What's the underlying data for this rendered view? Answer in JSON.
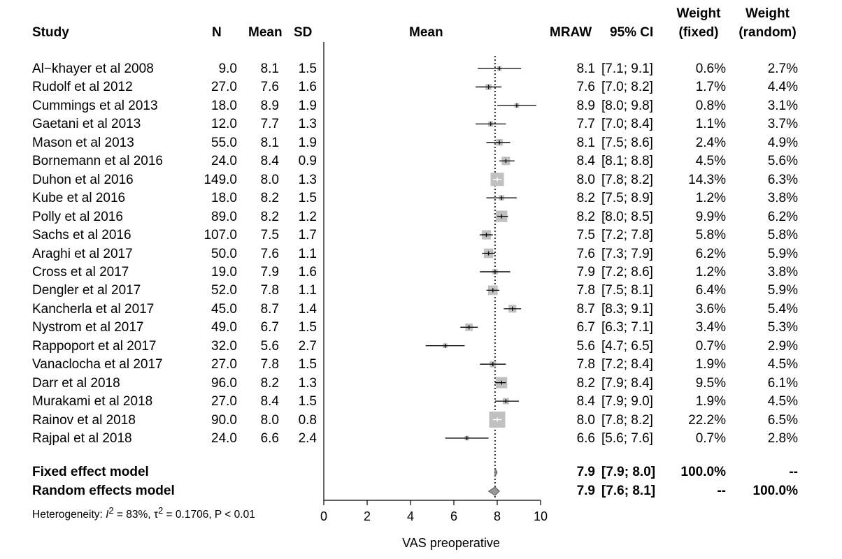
{
  "header": {
    "study": "Study",
    "n": "N",
    "mean": "Mean",
    "sd": "SD",
    "plot_mean": "Mean",
    "mraw": "MRAW",
    "ci": "95% CI",
    "wfixed_1": "Weight",
    "wfixed_2": "(fixed)",
    "wrandom_1": "Weight",
    "wrandom_2": "(random)"
  },
  "studies": [
    {
      "study": "Al−khayer et al 2008",
      "n": "9.0",
      "mean": "8.1",
      "sd": "1.5",
      "mraw": "8.1",
      "ci": "[7.1; 9.1]",
      "wfixed": "0.6%",
      "wrandom": "2.7%"
    },
    {
      "study": "Rudolf et al 2012",
      "n": "27.0",
      "mean": "7.6",
      "sd": "1.6",
      "mraw": "7.6",
      "ci": "[7.0; 8.2]",
      "wfixed": "1.7%",
      "wrandom": "4.4%"
    },
    {
      "study": "Cummings et al 2013",
      "n": "18.0",
      "mean": "8.9",
      "sd": "1.9",
      "mraw": "8.9",
      "ci": "[8.0; 9.8]",
      "wfixed": "0.8%",
      "wrandom": "3.1%"
    },
    {
      "study": "Gaetani et al 2013",
      "n": "12.0",
      "mean": "7.7",
      "sd": "1.3",
      "mraw": "7.7",
      "ci": "[7.0; 8.4]",
      "wfixed": "1.1%",
      "wrandom": "3.7%"
    },
    {
      "study": "Mason et al 2013",
      "n": "55.0",
      "mean": "8.1",
      "sd": "1.9",
      "mraw": "8.1",
      "ci": "[7.5; 8.6]",
      "wfixed": "2.4%",
      "wrandom": "4.9%"
    },
    {
      "study": "Bornemann et al 2016",
      "n": "24.0",
      "mean": "8.4",
      "sd": "0.9",
      "mraw": "8.4",
      "ci": "[8.1; 8.8]",
      "wfixed": "4.5%",
      "wrandom": "5.6%"
    },
    {
      "study": "Duhon et al 2016",
      "n": "149.0",
      "mean": "8.0",
      "sd": "1.3",
      "mraw": "8.0",
      "ci": "[7.8; 8.2]",
      "wfixed": "14.3%",
      "wrandom": "6.3%"
    },
    {
      "study": "Kube et al 2016",
      "n": "18.0",
      "mean": "8.2",
      "sd": "1.5",
      "mraw": "8.2",
      "ci": "[7.5; 8.9]",
      "wfixed": "1.2%",
      "wrandom": "3.8%"
    },
    {
      "study": "Polly et al 2016",
      "n": "89.0",
      "mean": "8.2",
      "sd": "1.2",
      "mraw": "8.2",
      "ci": "[8.0; 8.5]",
      "wfixed": "9.9%",
      "wrandom": "6.2%"
    },
    {
      "study": "Sachs et al 2016",
      "n": "107.0",
      "mean": "7.5",
      "sd": "1.7",
      "mraw": "7.5",
      "ci": "[7.2; 7.8]",
      "wfixed": "5.8%",
      "wrandom": "5.8%"
    },
    {
      "study": "Araghi et al 2017",
      "n": "50.0",
      "mean": "7.6",
      "sd": "1.1",
      "mraw": "7.6",
      "ci": "[7.3; 7.9]",
      "wfixed": "6.2%",
      "wrandom": "5.9%"
    },
    {
      "study": "Cross et al 2017",
      "n": "19.0",
      "mean": "7.9",
      "sd": "1.6",
      "mraw": "7.9",
      "ci": "[7.2; 8.6]",
      "wfixed": "1.2%",
      "wrandom": "3.8%"
    },
    {
      "study": "Dengler et al 2017",
      "n": "52.0",
      "mean": "7.8",
      "sd": "1.1",
      "mraw": "7.8",
      "ci": "[7.5; 8.1]",
      "wfixed": "6.4%",
      "wrandom": "5.9%"
    },
    {
      "study": "Kancherla et al 2017",
      "n": "45.0",
      "mean": "8.7",
      "sd": "1.4",
      "mraw": "8.7",
      "ci": "[8.3; 9.1]",
      "wfixed": "3.6%",
      "wrandom": "5.4%"
    },
    {
      "study": "Nystrom et al 2017",
      "n": "49.0",
      "mean": "6.7",
      "sd": "1.5",
      "mraw": "6.7",
      "ci": "[6.3; 7.1]",
      "wfixed": "3.4%",
      "wrandom": "5.3%"
    },
    {
      "study": "Rappoport et al 2017",
      "n": "32.0",
      "mean": "5.6",
      "sd": "2.7",
      "mraw": "5.6",
      "ci": "[4.7; 6.5]",
      "wfixed": "0.7%",
      "wrandom": "2.9%"
    },
    {
      "study": "Vanaclocha et al 2017",
      "n": "27.0",
      "mean": "7.8",
      "sd": "1.5",
      "mraw": "7.8",
      "ci": "[7.2; 8.4]",
      "wfixed": "1.9%",
      "wrandom": "4.5%"
    },
    {
      "study": "Darr et al 2018",
      "n": "96.0",
      "mean": "8.2",
      "sd": "1.3",
      "mraw": "8.2",
      "ci": "[7.9; 8.4]",
      "wfixed": "9.5%",
      "wrandom": "6.1%"
    },
    {
      "study": "Murakami et al 2018",
      "n": "27.0",
      "mean": "8.4",
      "sd": "1.5",
      "mraw": "8.4",
      "ci": "[7.9; 9.0]",
      "wfixed": "1.9%",
      "wrandom": "4.5%"
    },
    {
      "study": "Rainov et al 2018",
      "n": "90.0",
      "mean": "8.0",
      "sd": "0.8",
      "mraw": "8.0",
      "ci": "[7.8; 8.2]",
      "wfixed": "22.2%",
      "wrandom": "6.5%"
    },
    {
      "study": "Rajpal et al 2018",
      "n": "24.0",
      "mean": "6.6",
      "sd": "2.4",
      "mraw": "6.6",
      "ci": "[5.6; 7.6]",
      "wfixed": "0.7%",
      "wrandom": "2.8%"
    }
  ],
  "summary": {
    "fixed": {
      "label": "Fixed effect model",
      "mraw": "7.9",
      "ci": "[7.9; 8.0]",
      "wfixed": "100.0%",
      "wrandom": "--"
    },
    "random": {
      "label": "Random effects model",
      "mraw": "7.9",
      "ci": "[7.6; 8.1]",
      "wfixed": "--",
      "wrandom": "100.0%"
    }
  },
  "heterogeneity": {
    "prefix": "Heterogeneity: ",
    "i2_symbol": "I",
    "i2_sup": "2",
    "i2_value": " = 83%, ",
    "tau_symbol": "τ",
    "tau_sup": "2",
    "tau_value": " = 0.1706, P < 0.01"
  },
  "chart_data": {
    "type": "forest",
    "xlabel": "VAS preoperative",
    "xlim": [
      0,
      10
    ],
    "xticks": [
      "0",
      "2",
      "4",
      "6",
      "8",
      "10"
    ],
    "reference_line": 7.9,
    "points": [
      {
        "mean": 8.1,
        "lower": 7.1,
        "upper": 9.1,
        "weight": 0.6
      },
      {
        "mean": 7.6,
        "lower": 7.0,
        "upper": 8.2,
        "weight": 1.7
      },
      {
        "mean": 8.9,
        "lower": 8.0,
        "upper": 9.8,
        "weight": 0.8
      },
      {
        "mean": 7.7,
        "lower": 7.0,
        "upper": 8.4,
        "weight": 1.1
      },
      {
        "mean": 8.1,
        "lower": 7.5,
        "upper": 8.6,
        "weight": 2.4
      },
      {
        "mean": 8.4,
        "lower": 8.1,
        "upper": 8.8,
        "weight": 4.5
      },
      {
        "mean": 8.0,
        "lower": 7.8,
        "upper": 8.2,
        "weight": 14.3
      },
      {
        "mean": 8.2,
        "lower": 7.5,
        "upper": 8.9,
        "weight": 1.2
      },
      {
        "mean": 8.2,
        "lower": 8.0,
        "upper": 8.5,
        "weight": 9.9
      },
      {
        "mean": 7.5,
        "lower": 7.2,
        "upper": 7.8,
        "weight": 5.8
      },
      {
        "mean": 7.6,
        "lower": 7.3,
        "upper": 7.9,
        "weight": 6.2
      },
      {
        "mean": 7.9,
        "lower": 7.2,
        "upper": 8.6,
        "weight": 1.2
      },
      {
        "mean": 7.8,
        "lower": 7.5,
        "upper": 8.1,
        "weight": 6.4
      },
      {
        "mean": 8.7,
        "lower": 8.3,
        "upper": 9.1,
        "weight": 3.6
      },
      {
        "mean": 6.7,
        "lower": 6.3,
        "upper": 7.1,
        "weight": 3.4
      },
      {
        "mean": 5.6,
        "lower": 4.7,
        "upper": 6.5,
        "weight": 0.7
      },
      {
        "mean": 7.8,
        "lower": 7.2,
        "upper": 8.4,
        "weight": 1.9
      },
      {
        "mean": 8.2,
        "lower": 7.9,
        "upper": 8.4,
        "weight": 9.5
      },
      {
        "mean": 8.4,
        "lower": 7.9,
        "upper": 9.0,
        "weight": 1.9
      },
      {
        "mean": 8.0,
        "lower": 7.8,
        "upper": 8.2,
        "weight": 22.2
      },
      {
        "mean": 6.6,
        "lower": 5.6,
        "upper": 7.6,
        "weight": 0.7
      }
    ],
    "summaries": [
      {
        "name": "fixed",
        "mean": 7.9,
        "lower": 7.9,
        "upper": 8.0
      },
      {
        "name": "random",
        "mean": 7.9,
        "lower": 7.6,
        "upper": 8.1
      }
    ],
    "colors": {
      "box": "#c0c0c0",
      "diamond": "#999999",
      "line": "#000000"
    }
  }
}
